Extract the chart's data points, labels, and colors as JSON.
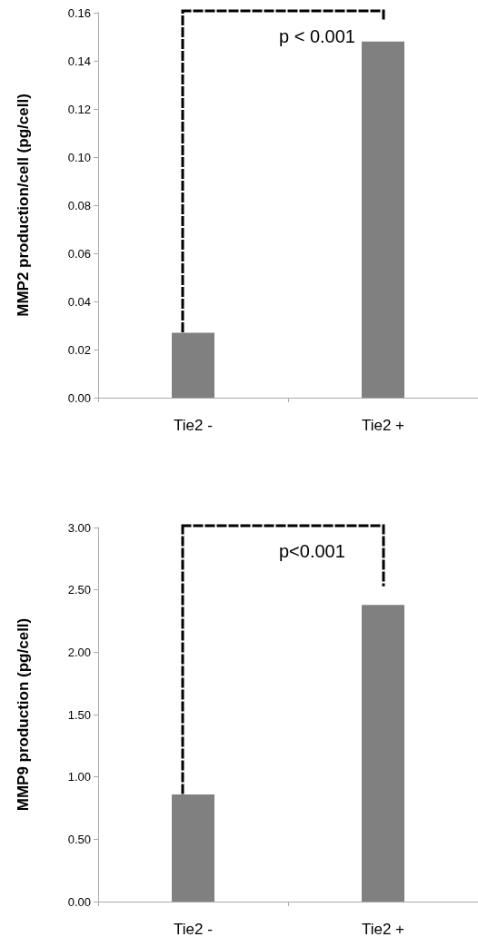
{
  "chart_data": [
    {
      "type": "bar",
      "ylabel": "MMP2 production/cell (pg/cell)",
      "categories": [
        "Tie2 -",
        "Tie2 +"
      ],
      "values": [
        0.027,
        0.148
      ],
      "color": "#808080",
      "ylim": [
        0,
        0.16
      ],
      "yticks": [
        {
          "value": 0,
          "label": "0.00"
        },
        {
          "value": 0.02,
          "label": "0.02"
        },
        {
          "value": 0.04,
          "label": "0.04"
        },
        {
          "value": 0.06,
          "label": "0.06"
        },
        {
          "value": 0.08,
          "label": "0.08"
        },
        {
          "value": 0.1,
          "label": "0.10"
        },
        {
          "value": 0.12,
          "label": "0.12"
        },
        {
          "value": 0.14,
          "label": "0.14"
        },
        {
          "value": 0.16,
          "label": "0.16"
        }
      ],
      "grid": false,
      "annotations": [
        "p < 0.001"
      ]
    },
    {
      "type": "bar",
      "ylabel": "MMP9 production (pg/cell)",
      "categories": [
        "Tie2 -",
        "Tie2 +"
      ],
      "values": [
        0.86,
        2.38
      ],
      "color": "#808080",
      "ylim": [
        0,
        3
      ],
      "yticks": [
        {
          "value": 0,
          "label": "0.00"
        },
        {
          "value": 0.5,
          "label": "0.50"
        },
        {
          "value": 1,
          "label": "1.00"
        },
        {
          "value": 1.5,
          "label": "1.50"
        },
        {
          "value": 2,
          "label": "2.00"
        },
        {
          "value": 2.5,
          "label": "2.50"
        },
        {
          "value": 3,
          "label": "3.00"
        }
      ],
      "grid": false,
      "annotations": [
        "p<0.001"
      ]
    }
  ]
}
